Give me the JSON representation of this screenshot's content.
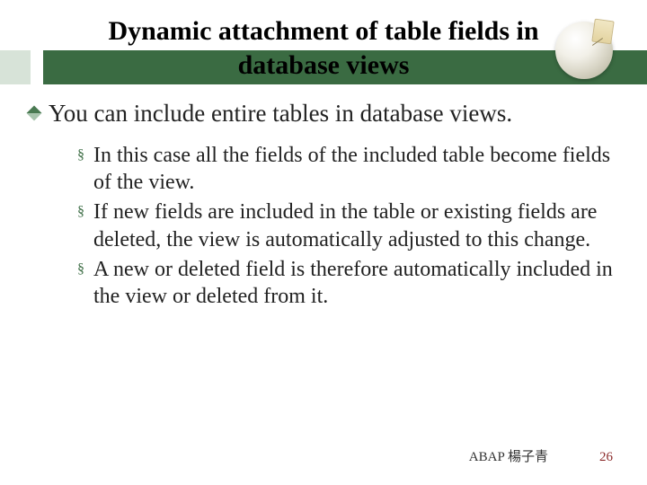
{
  "title_line1": "Dynamic attachment of table fields in",
  "title_line2": "database views",
  "main_bullet": "You can include entire tables in database views.",
  "sub_bullets": {
    "0": "In this case all the fields of the included table become fields of the view.",
    "1": "If new fields are included in the table or existing fields are deleted, the view is automatically adjusted to this change.",
    "2": "A new or deleted field is therefore automatically included in the view or deleted from it."
  },
  "footer_author": "ABAP 楊子青",
  "footer_page": "26",
  "colors": {
    "band": "#3a6b42",
    "band_left": "#d7e3d8",
    "bullet_diamond_dark": "#4a7a52",
    "bullet_diamond_light": "#a8c4ad",
    "page_number": "#8b2b2b"
  }
}
